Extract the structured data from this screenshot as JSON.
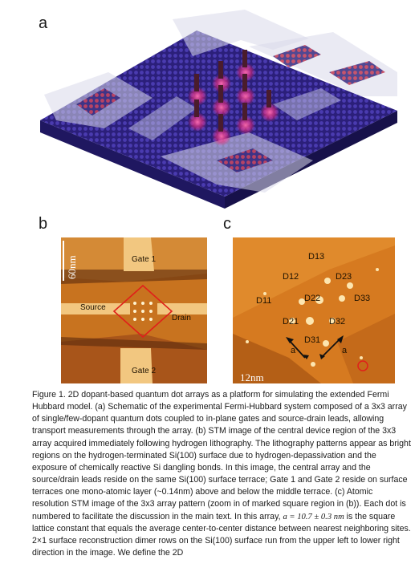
{
  "figure": {
    "panel_a": {
      "label": "a"
    },
    "panel_b": {
      "label": "b",
      "scale_bar": "60nm",
      "gate1": "Gate 1",
      "gate2": "Gate 2",
      "source": "Source",
      "drain": "Drain"
    },
    "panel_c": {
      "label": "c",
      "scale_bar": "12nm",
      "dots": [
        "D13",
        "D12",
        "D23",
        "D11",
        "D22",
        "D33",
        "D21",
        "D32",
        "D31"
      ],
      "lattice_label": "a"
    }
  },
  "caption": {
    "part1": "Figure 1. 2D dopant-based quantum dot arrays as a platform for simulating the extended Fermi Hubbard model. (a) Schematic of the experimental Fermi-Hubbard system composed of a 3x3 array of single/few-dopant quantum dots coupled to in-plane gates and source-drain leads, allowing transport measurements through the array. (b) STM image of the central device region of the 3x3 array acquired immediately following hydrogen lithography. The lithography patterns appear as bright regions on the hydrogen-terminated Si(100) surface due to hydrogen-depassivation and the exposure of chemically reactive Si dangling bonds. In this image, the central array and the source/drain leads reside on the same Si(100) surface terrace; Gate 1 and Gate 2 reside on surface terraces one mono-atomic layer (~0.14nm) above and below the middle terrace. (c) Atomic resolution STM image of the 3x3 array pattern (zoom in of marked square region in (b)).  Each dot is numbered to facilitate the discussion in the main text. In this array, ",
    "math": "a = 10.7 ± 0.3 nm",
    "part2": " is the square lattice constant that equals the average center-to-center distance between nearest neighboring sites. 2×1 surface reconstruction dimer rows on the Si(100) surface run from the upper left to lower right direction in the image. We define the 2D"
  }
}
